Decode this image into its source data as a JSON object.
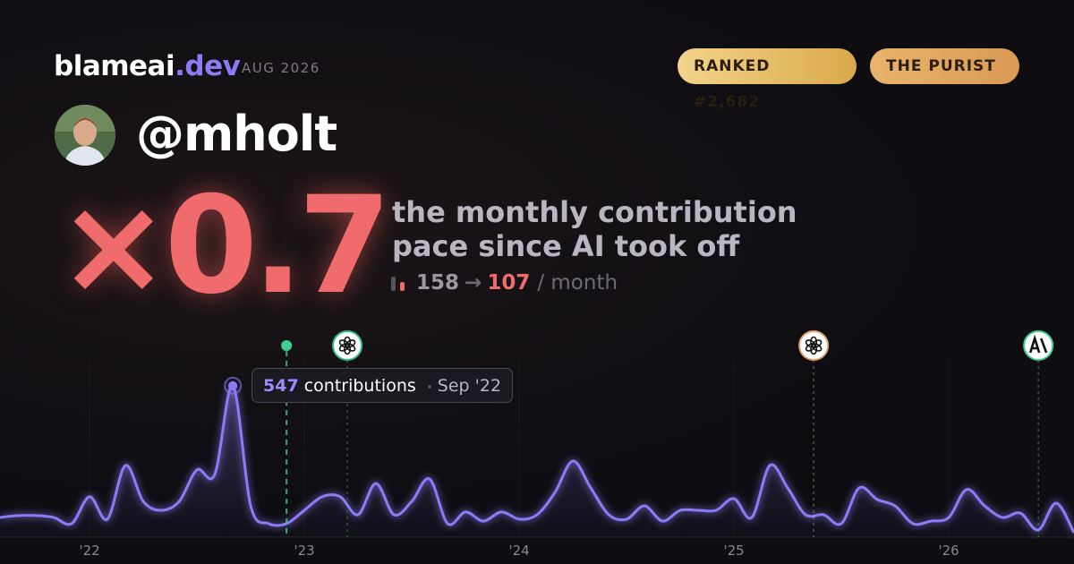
{
  "header": {
    "brand": "blameai",
    "brand_tld": ".dev",
    "date": "AUG 2026",
    "badges": [
      "RANKED #2,682",
      "THE PURIST"
    ]
  },
  "user": {
    "handle": "@mholt"
  },
  "stat": {
    "multiplier": "×0.7",
    "caption": [
      "the monthly contribution",
      "pace since AI took off"
    ],
    "before": "158",
    "arrow": "→",
    "after": "107",
    "unit": "/ month"
  },
  "chart_data": {
    "type": "line",
    "color": "#8b7cf6",
    "x": [
      2021.583,
      2021.667,
      2021.75,
      2021.833,
      2021.917,
      2022,
      2022.083,
      2022.167,
      2022.25,
      2022.333,
      2022.417,
      2022.5,
      2022.583,
      2022.667,
      2022.75,
      2022.833,
      2022.917,
      2023,
      2023.083,
      2023.167,
      2023.25,
      2023.333,
      2023.417,
      2023.5,
      2023.583,
      2023.667,
      2023.75,
      2023.833,
      2023.917,
      2024,
      2024.083,
      2024.167,
      2024.25,
      2024.333,
      2024.417,
      2024.5,
      2024.583,
      2024.667,
      2024.75,
      2024.833,
      2024.917,
      2025,
      2025.083,
      2025.167,
      2025.25,
      2025.333,
      2025.417,
      2025.5,
      2025.583,
      2025.667,
      2025.75,
      2025.833,
      2025.917,
      2026,
      2026.083,
      2026.167,
      2026.25,
      2026.333,
      2026.417,
      2026.5,
      2026.583
    ],
    "series": [
      {
        "name": "contributions",
        "color": "#8b7cf6",
        "values": [
          71,
          78,
          78,
          71,
          49,
          146,
          65,
          259,
          129,
          97,
          129,
          243,
          227,
          547,
          113,
          49,
          49,
          97,
          146,
          146,
          81,
          194,
          81,
          129,
          210,
          49,
          91,
          58,
          91,
          65,
          81,
          162,
          275,
          178,
          81,
          65,
          113,
          58,
          97,
          97,
          97,
          139,
          71,
          259,
          178,
          81,
          81,
          49,
          178,
          136,
          113,
          49,
          58,
          71,
          172,
          113,
          71,
          87,
          26,
          123,
          16
        ]
      }
    ],
    "xlim": [
      2021.583,
      2026.583
    ],
    "ylim": [
      0,
      650
    ],
    "xticks": [
      {
        "value": 2022,
        "label": "'22"
      },
      {
        "value": 2023,
        "label": "'23"
      },
      {
        "value": 2024,
        "label": "'24"
      },
      {
        "value": 2025,
        "label": "'25"
      },
      {
        "value": 2026,
        "label": "'26"
      }
    ],
    "annotation": {
      "index": 13,
      "label": "contributions",
      "date": "Sep '22"
    },
    "events": [
      {
        "x": 2022.917,
        "icon": "dot",
        "color": "#3ecf8e"
      },
      {
        "x": 2023.2,
        "icon": "openai",
        "color": "#2fbf8a"
      },
      {
        "x": 2025.371,
        "icon": "openai",
        "color": "#e0a36a"
      },
      {
        "x": 2026.417,
        "icon": "anthropic",
        "color": "#3ecf8e"
      }
    ]
  }
}
